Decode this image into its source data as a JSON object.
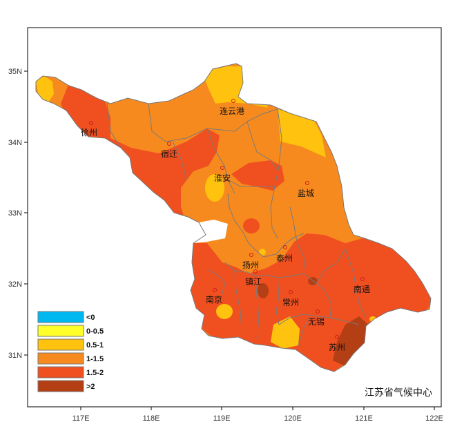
{
  "map": {
    "credit": "江苏省气候中心",
    "x_ticks": [
      "117E",
      "118E",
      "119E",
      "120E",
      "121E",
      "122E"
    ],
    "y_ticks": [
      "35N",
      "34N",
      "33N",
      "32N",
      "31N"
    ],
    "colors": {
      "lt0": "#00b8f0",
      "c0_05": "#ffff2a",
      "c05_1": "#ffc20e",
      "c1_15": "#f78a1e",
      "c15_2": "#f05020",
      "gt2": "#b43f14",
      "boundary": "#777777",
      "frame": "#000000"
    },
    "legend": [
      {
        "label": "<0",
        "color": "#00b8f0"
      },
      {
        "label": "0-0.5",
        "color": "#ffff2a"
      },
      {
        "label": "0.5-1",
        "color": "#ffc20e"
      },
      {
        "label": "1-1.5",
        "color": "#f78a1e"
      },
      {
        "label": "1.5-2",
        "color": "#f05020"
      },
      {
        "label": ">2",
        "color": "#b43f14"
      }
    ],
    "cities": [
      {
        "name": "徐州"
      },
      {
        "name": "连云港"
      },
      {
        "name": "宿迁"
      },
      {
        "name": "淮安"
      },
      {
        "name": "盐城"
      },
      {
        "name": "扬州"
      },
      {
        "name": "泰州"
      },
      {
        "name": "镇江"
      },
      {
        "name": "南京"
      },
      {
        "name": "常州"
      },
      {
        "name": "南通"
      },
      {
        "name": "无锡"
      },
      {
        "name": "苏州"
      }
    ]
  }
}
